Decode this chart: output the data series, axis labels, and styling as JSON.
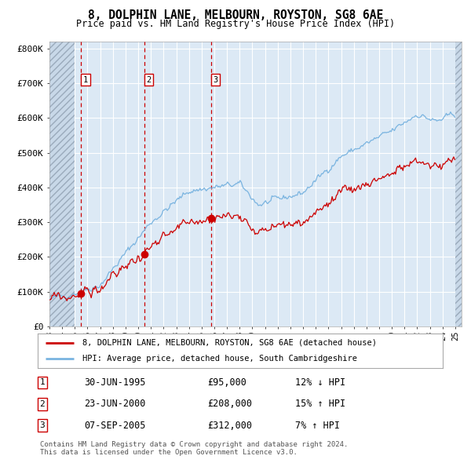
{
  "title": "8, DOLPHIN LANE, MELBOURN, ROYSTON, SG8 6AE",
  "subtitle": "Price paid vs. HM Land Registry's House Price Index (HPI)",
  "sales": [
    {
      "label": "1",
      "date": "30-JUN-1995",
      "price": 95000,
      "hpi_rel": "12% ↓ HPI"
    },
    {
      "label": "2",
      "date": "23-JUN-2000",
      "price": 208000,
      "hpi_rel": "15% ↑ HPI"
    },
    {
      "label": "3",
      "date": "07-SEP-2005",
      "price": 312000,
      "hpi_rel": "7% ↑ HPI"
    }
  ],
  "sale_dates_num": [
    1995.5,
    2000.5,
    2005.75
  ],
  "legend_red": "8, DOLPHIN LANE, MELBOURN, ROYSTON, SG8 6AE (detached house)",
  "legend_blue": "HPI: Average price, detached house, South Cambridgeshire",
  "copyright": "Contains HM Land Registry data © Crown copyright and database right 2024.\nThis data is licensed under the Open Government Licence v3.0.",
  "ylim": [
    0,
    820000
  ],
  "yticks": [
    0,
    100000,
    200000,
    300000,
    400000,
    500000,
    600000,
    700000,
    800000
  ],
  "ytick_labels": [
    "£0",
    "£100K",
    "£200K",
    "£300K",
    "£400K",
    "£500K",
    "£600K",
    "£700K",
    "£800K"
  ],
  "bg_color": "#dce9f5",
  "hatch_color": "#b8c8d8",
  "grid_color": "#ffffff",
  "red_color": "#cc0000",
  "blue_color": "#7ab4e0",
  "vline_color": "#cc0000",
  "dot_color": "#cc0000",
  "xlim_start": 1993,
  "xlim_end": 2025.5
}
